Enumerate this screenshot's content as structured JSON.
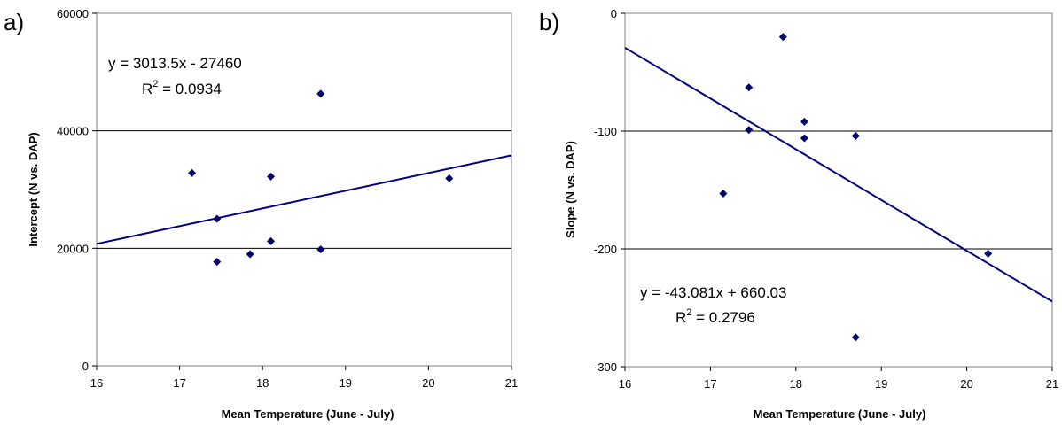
{
  "chart_data": [
    {
      "type": "scatter",
      "panel_label": "a)",
      "xlabel": "Mean Temperature (June - July)",
      "ylabel": "Intercept (N vs. DAP)",
      "xlim": [
        16,
        21
      ],
      "ylim": [
        0,
        60000
      ],
      "xticks": [
        "16",
        "17",
        "18",
        "19",
        "20",
        "21"
      ],
      "yticks": [
        "0",
        "20000",
        "40000",
        "60000"
      ],
      "ytick_values": [
        0,
        20000,
        40000,
        60000
      ],
      "grid": "horizontal",
      "series": [
        {
          "x": [
            17.15,
            17.45,
            17.45,
            17.85,
            18.1,
            18.1,
            18.7,
            18.7,
            20.25
          ],
          "y": [
            32800,
            25000,
            17700,
            19000,
            32200,
            21200,
            46300,
            19800,
            31900
          ]
        }
      ],
      "trendline": {
        "type": "linear",
        "slope": 3013.5,
        "intercept": -27460
      },
      "equation_text": "y = 3013.5x - 27460",
      "r2_prefix": "R",
      "r2_exponent": "2",
      "r2_value_text": " = 0.0934",
      "colors": {
        "marker": "#000066",
        "trendline": "#000080",
        "grid": "#000000"
      }
    },
    {
      "type": "scatter",
      "panel_label": "b)",
      "xlabel": "Mean Temperature (June - July)",
      "ylabel": "Slope (N vs. DAP)",
      "xlim": [
        16,
        21
      ],
      "ylim": [
        -300,
        0
      ],
      "xticks": [
        "16",
        "17",
        "18",
        "19",
        "20",
        "21"
      ],
      "yticks": [
        "-300",
        "-200",
        "-100",
        "0"
      ],
      "ytick_values": [
        -300,
        -200,
        -100,
        0
      ],
      "grid": "horizontal",
      "series": [
        {
          "x": [
            17.15,
            17.45,
            17.45,
            17.85,
            18.1,
            18.1,
            18.7,
            18.7,
            20.25
          ],
          "y": [
            -153,
            -63,
            -99,
            -20,
            -92,
            -106,
            -104,
            -275,
            -204
          ]
        }
      ],
      "trendline": {
        "type": "linear",
        "slope": -43.081,
        "intercept": 660.03
      },
      "equation_text": "y = -43.081x + 660.03",
      "r2_prefix": "R",
      "r2_exponent": "2",
      "r2_value_text": " = 0.2796",
      "colors": {
        "marker": "#000066",
        "trendline": "#000080",
        "grid": "#000000"
      }
    }
  ]
}
